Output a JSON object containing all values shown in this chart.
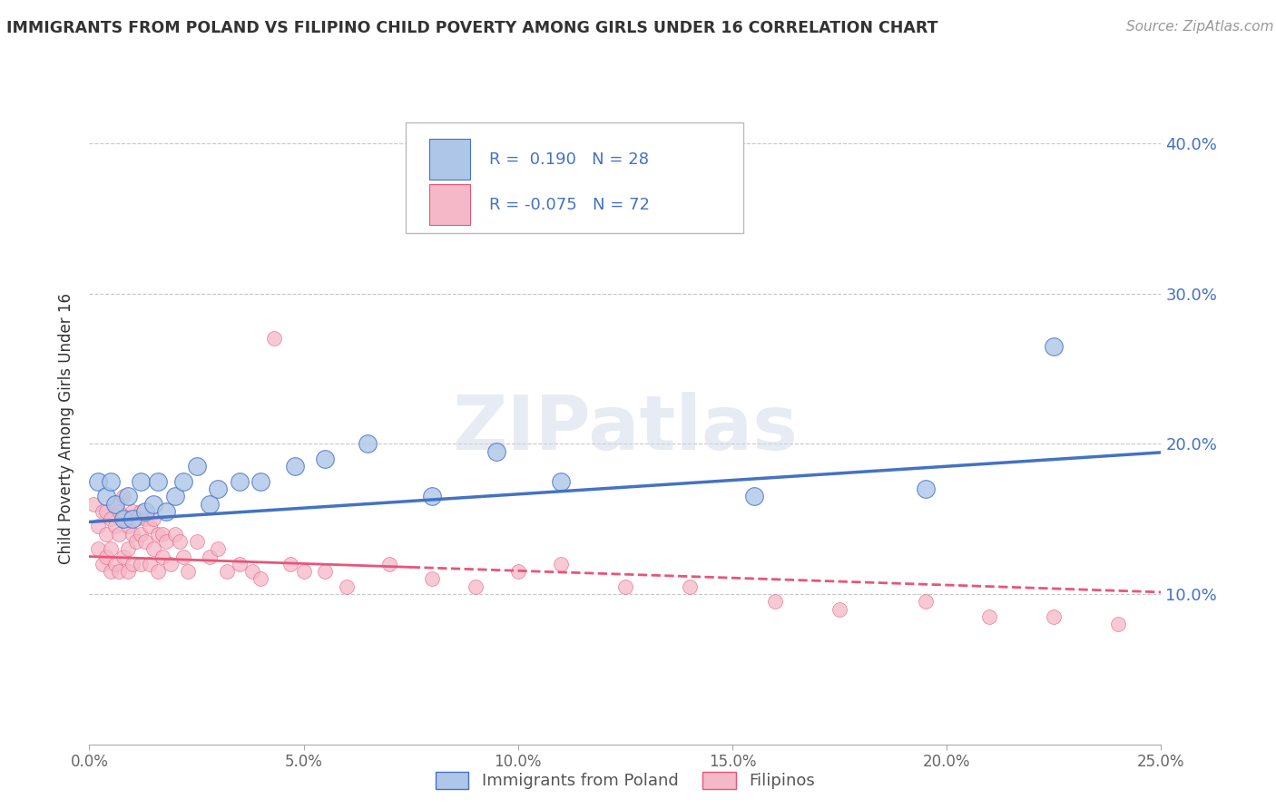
{
  "title": "IMMIGRANTS FROM POLAND VS FILIPINO CHILD POVERTY AMONG GIRLS UNDER 16 CORRELATION CHART",
  "source": "Source: ZipAtlas.com",
  "ylabel": "Child Poverty Among Girls Under 16",
  "xlim": [
    0.0,
    0.25
  ],
  "ylim": [
    0.0,
    0.42
  ],
  "xtick_labels": [
    "0.0%",
    "5.0%",
    "10.0%",
    "15.0%",
    "20.0%",
    "25.0%"
  ],
  "xtick_values": [
    0.0,
    0.05,
    0.1,
    0.15,
    0.2,
    0.25
  ],
  "ytick_labels": [
    "10.0%",
    "20.0%",
    "30.0%",
    "40.0%"
  ],
  "ytick_values": [
    0.1,
    0.2,
    0.3,
    0.4
  ],
  "legend_labels": [
    "Immigrants from Poland",
    "Filipinos"
  ],
  "blue_R": "0.190",
  "blue_N": "28",
  "pink_R": "-0.075",
  "pink_N": "72",
  "blue_color": "#aec6e8",
  "blue_line_color": "#4472c4",
  "pink_color": "#f4b8c8",
  "pink_line_color": "#e8557a",
  "watermark": "ZIPatlas",
  "blue_scatter_x": [
    0.002,
    0.004,
    0.005,
    0.006,
    0.008,
    0.009,
    0.01,
    0.012,
    0.013,
    0.015,
    0.016,
    0.018,
    0.02,
    0.022,
    0.025,
    0.028,
    0.03,
    0.035,
    0.04,
    0.048,
    0.055,
    0.065,
    0.08,
    0.095,
    0.11,
    0.155,
    0.195,
    0.225
  ],
  "blue_scatter_y": [
    0.175,
    0.165,
    0.175,
    0.16,
    0.15,
    0.165,
    0.15,
    0.175,
    0.155,
    0.16,
    0.175,
    0.155,
    0.165,
    0.175,
    0.185,
    0.16,
    0.17,
    0.175,
    0.175,
    0.185,
    0.19,
    0.2,
    0.165,
    0.195,
    0.175,
    0.165,
    0.17,
    0.265
  ],
  "pink_scatter_x": [
    0.001,
    0.002,
    0.002,
    0.003,
    0.003,
    0.004,
    0.004,
    0.004,
    0.005,
    0.005,
    0.005,
    0.006,
    0.006,
    0.006,
    0.007,
    0.007,
    0.007,
    0.008,
    0.008,
    0.008,
    0.009,
    0.009,
    0.009,
    0.01,
    0.01,
    0.01,
    0.011,
    0.011,
    0.012,
    0.012,
    0.012,
    0.013,
    0.013,
    0.014,
    0.014,
    0.015,
    0.015,
    0.016,
    0.016,
    0.017,
    0.017,
    0.018,
    0.019,
    0.02,
    0.021,
    0.022,
    0.023,
    0.025,
    0.028,
    0.03,
    0.032,
    0.035,
    0.038,
    0.04,
    0.043,
    0.047,
    0.05,
    0.055,
    0.06,
    0.07,
    0.08,
    0.09,
    0.1,
    0.11,
    0.125,
    0.14,
    0.16,
    0.175,
    0.195,
    0.21,
    0.225,
    0.24
  ],
  "pink_scatter_y": [
    0.16,
    0.145,
    0.13,
    0.155,
    0.12,
    0.14,
    0.155,
    0.125,
    0.15,
    0.13,
    0.115,
    0.145,
    0.16,
    0.12,
    0.14,
    0.155,
    0.115,
    0.15,
    0.165,
    0.125,
    0.145,
    0.13,
    0.115,
    0.155,
    0.14,
    0.12,
    0.15,
    0.135,
    0.155,
    0.14,
    0.12,
    0.15,
    0.135,
    0.145,
    0.12,
    0.15,
    0.13,
    0.14,
    0.115,
    0.14,
    0.125,
    0.135,
    0.12,
    0.14,
    0.135,
    0.125,
    0.115,
    0.135,
    0.125,
    0.13,
    0.115,
    0.12,
    0.115,
    0.11,
    0.27,
    0.12,
    0.115,
    0.115,
    0.105,
    0.12,
    0.11,
    0.105,
    0.115,
    0.12,
    0.105,
    0.105,
    0.095,
    0.09,
    0.095,
    0.085,
    0.085,
    0.08
  ],
  "background_color": "#ffffff",
  "grid_color": "#c8c8c8",
  "blue_reg_intercept": 0.148,
  "blue_reg_slope": 0.185,
  "pink_reg_intercept": 0.125,
  "pink_reg_slope": -0.095
}
